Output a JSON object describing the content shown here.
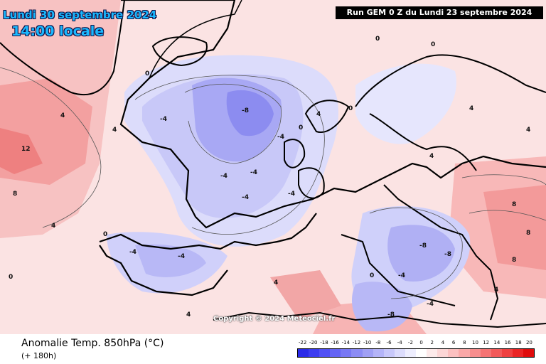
{
  "map": {
    "title_date": "Lundi 30 septembre 2024",
    "title_time": "14:00 locale",
    "run_info": "Run GEM 0 Z du Lundi 23 septembre 2024",
    "copyright": "Copyright © 2024 Meteociel.fr",
    "parameter": "Anomalie Temp. 850hPa (°C)",
    "lead_time": "(+ 180h)",
    "contour_labels": [
      "0",
      "-4",
      "-8",
      "4",
      "8",
      "12"
    ],
    "legend": {
      "values": [
        "-22",
        "-20",
        "-18",
        "-16",
        "-14",
        "-12",
        "-10",
        "-8",
        "-6",
        "-4",
        "-2",
        "0",
        "2",
        "4",
        "6",
        "8",
        "10",
        "12",
        "14",
        "16",
        "18",
        "20"
      ],
      "colors": [
        "#2a2ae8",
        "#3c3cf0",
        "#5050f5",
        "#6464f5",
        "#7878f5",
        "#8c8cf5",
        "#a0a0f5",
        "#b4b4f8",
        "#c8c8fa",
        "#dcdcfc",
        "#eeeefe",
        "#ffffff",
        "#fdeaea",
        "#fcd6d6",
        "#fbc0c0",
        "#f9a8a8",
        "#f78e8e",
        "#f57474",
        "#f25a5a",
        "#ef4040",
        "#ea2424",
        "#e00c0c"
      ]
    }
  }
}
